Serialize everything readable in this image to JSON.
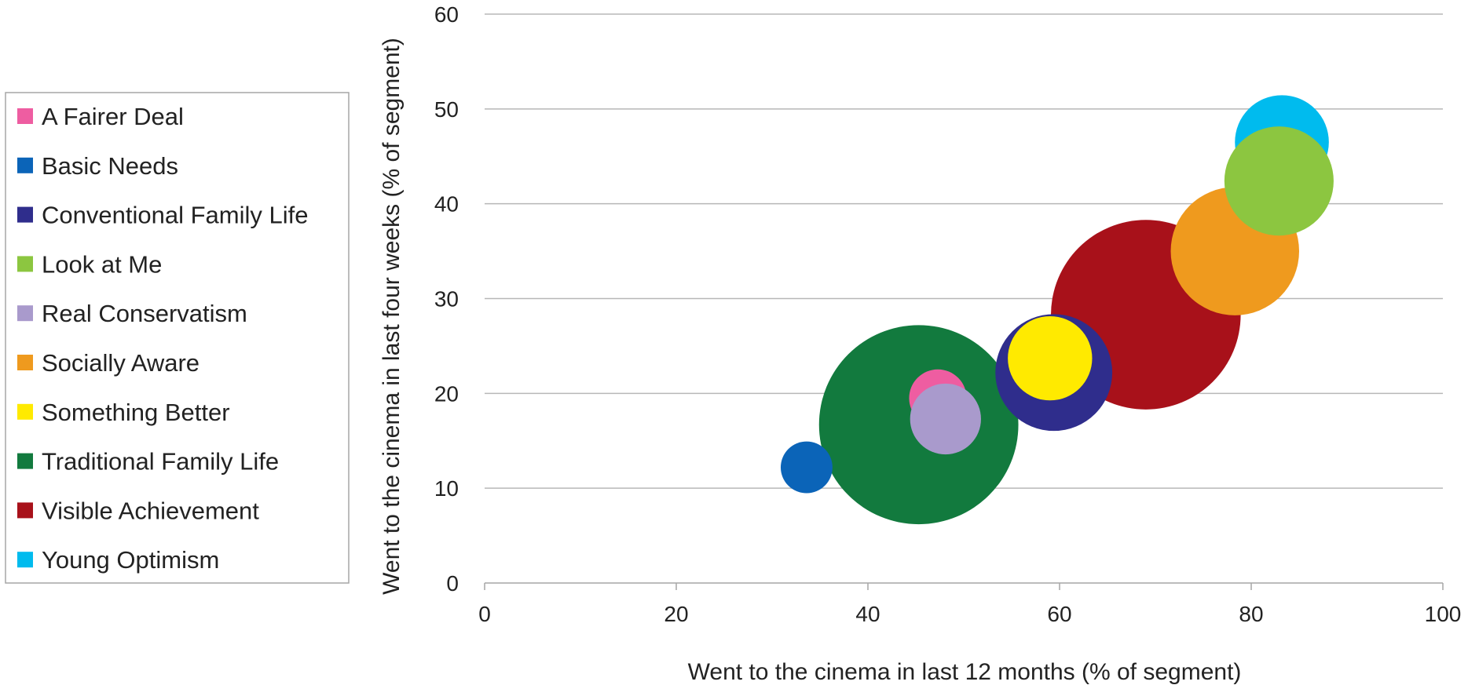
{
  "chart_data": {
    "type": "bubble",
    "title": "",
    "xlabel": "Went to the cinema in last 12 months (% of segment)",
    "ylabel": "Went to the cinema in last four weeks (% of segment)",
    "xlim": [
      0,
      100
    ],
    "ylim": [
      0,
      60
    ],
    "xticks": [
      0,
      20,
      40,
      60,
      80,
      100
    ],
    "yticks": [
      0,
      10,
      20,
      30,
      40,
      50,
      60
    ],
    "grid": "horizontal",
    "legend_position": "left",
    "series": [
      {
        "name": "A Fairer Deal",
        "x": 47.3,
        "y": 19.5,
        "r": 3.0,
        "color": "#EE5DA1"
      },
      {
        "name": "Basic Needs",
        "x": 33.6,
        "y": 12.2,
        "r": 2.7,
        "color": "#0B64B8"
      },
      {
        "name": "Conventional Family Life",
        "x": 59.4,
        "y": 22.2,
        "r": 6.1,
        "color": "#2F2D8C"
      },
      {
        "name": "Look at Me",
        "x": 82.9,
        "y": 42.4,
        "r": 5.7,
        "color": "#8CC640"
      },
      {
        "name": "Real Conservatism",
        "x": 48.1,
        "y": 17.3,
        "r": 3.7,
        "color": "#A99ACC"
      },
      {
        "name": "Socially Aware",
        "x": 78.3,
        "y": 35.0,
        "r": 6.7,
        "color": "#EF9A1E"
      },
      {
        "name": "Something Better",
        "x": 59.0,
        "y": 23.7,
        "r": 4.4,
        "color": "#FFEA00"
      },
      {
        "name": "Traditional Family Life",
        "x": 45.3,
        "y": 16.7,
        "r": 10.4,
        "color": "#127A3E"
      },
      {
        "name": "Visible Achievement",
        "x": 69.0,
        "y": 28.3,
        "r": 9.9,
        "color": "#A8111A"
      },
      {
        "name": "Young Optimism",
        "x": 83.2,
        "y": 46.5,
        "r": 4.9,
        "color": "#00BBEE"
      }
    ],
    "draw_order": [
      7,
      8,
      5,
      2,
      6,
      0,
      4,
      1,
      9,
      3
    ]
  }
}
